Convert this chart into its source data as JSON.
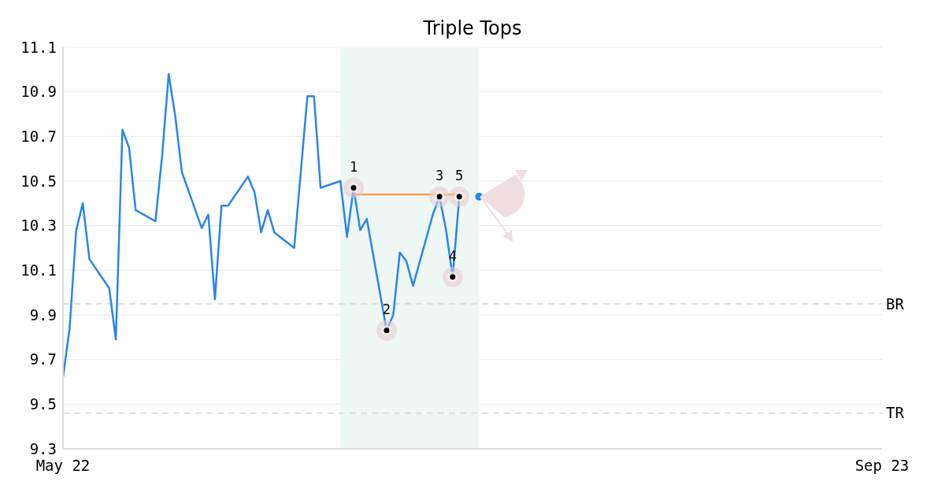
{
  "chart_data": {
    "type": "line",
    "title": "Triple Tops",
    "xlim": [
      "--05-22",
      "--09-23"
    ],
    "xticks": [
      {
        "value": "--05-22",
        "label": "May 22"
      },
      {
        "value": "--09-23",
        "label": "Sep 23"
      }
    ],
    "ylim": [
      9.3,
      11.1
    ],
    "yticks": [
      9.3,
      9.5,
      9.7,
      9.9,
      10.1,
      10.3,
      10.5,
      10.7,
      10.9,
      11.1
    ],
    "grid": "y",
    "legend": false,
    "series": [
      {
        "color": "#2a85e8",
        "x": [
          "--05-22",
          "--05-23",
          "--05-24",
          "--05-25",
          "--05-26",
          "--05-29",
          "--05-30",
          "--05-31",
          "--06-01",
          "--06-02",
          "--06-05",
          "--06-06",
          "--06-07",
          "--06-08",
          "--06-09",
          "--06-12",
          "--06-13",
          "--06-14",
          "--06-15",
          "--06-16",
          "--06-19",
          "--06-20",
          "--06-21",
          "--06-22",
          "--06-23",
          "--06-26",
          "--06-27",
          "--06-28",
          "--06-29",
          "--06-30",
          "--07-03",
          "--07-04",
          "--07-05",
          "--07-06",
          "--07-07",
          "--07-10",
          "--07-11",
          "--07-12",
          "--07-13",
          "--07-14",
          "--07-17",
          "--07-18",
          "--07-19",
          "--07-20",
          "--07-21"
        ],
        "values": [
          9.62,
          9.84,
          10.28,
          10.4,
          10.15,
          10.02,
          9.79,
          10.73,
          10.65,
          10.37,
          10.32,
          10.61,
          10.98,
          10.79,
          10.54,
          10.29,
          10.35,
          9.97,
          10.39,
          10.39,
          10.52,
          10.45,
          10.27,
          10.37,
          10.27,
          10.2,
          10.54,
          10.88,
          10.88,
          10.47,
          10.5,
          10.25,
          10.47,
          10.28,
          10.33,
          9.83,
          9.9,
          10.18,
          10.14,
          10.03,
          10.35,
          10.43,
          10.28,
          10.07,
          10.43
        ]
      },
      {
        "type": "line",
        "color": "#f5a04e",
        "x": [
          "--07-05",
          "--07-21"
        ],
        "values": [
          10.44,
          10.44
        ]
      },
      {
        "type": "scatter",
        "color": "#000000",
        "x": [
          "--07-05",
          "--07-10",
          "--07-18",
          "--07-20",
          "--07-21"
        ],
        "values": [
          10.47,
          9.83,
          10.43,
          10.07,
          10.43
        ]
      },
      {
        "type": "scatter",
        "color": "#2a85e8",
        "x": [
          "--07-24"
        ],
        "values": [
          10.43
        ]
      }
    ],
    "annotations": [
      {
        "text": "1",
        "x": "--07-05",
        "y": 10.47
      },
      {
        "text": "2",
        "x": "--07-10",
        "y": 9.83
      },
      {
        "text": "3",
        "x": "--07-18",
        "y": 10.43
      },
      {
        "text": "4",
        "x": "--07-20",
        "y": 10.07
      },
      {
        "text": "5",
        "x": "--07-21",
        "y": 10.43
      }
    ],
    "bands": [
      {
        "axis": "x",
        "from": "--07-03",
        "to": "--07-24",
        "color": "#eef7f3"
      }
    ],
    "ref_lines": [
      {
        "axis": "y",
        "value": 9.95,
        "label": "BR",
        "color": "#dddddd",
        "line_style": "dashed"
      },
      {
        "axis": "y",
        "value": 9.46,
        "label": "TR",
        "color": "#dddddd",
        "line_style": "dashed"
      }
    ]
  }
}
